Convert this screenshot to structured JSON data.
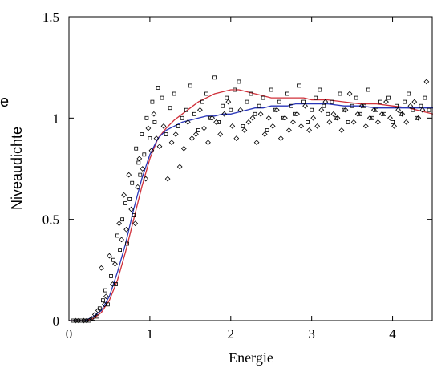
{
  "chart_data": {
    "type": "scatter",
    "title": "",
    "xlabel": "Energie",
    "ylabel": "Niveaudichte",
    "stray_text": "e",
    "xlim": [
      0,
      4.5
    ],
    "ylim": [
      0,
      1.5
    ],
    "x_ticks": [
      0,
      1,
      2,
      3,
      4
    ],
    "x_tick_labels": [
      "0",
      "1",
      "2",
      "3",
      "4"
    ],
    "y_ticks": [
      0,
      0.5,
      1,
      1.5
    ],
    "y_tick_labels": [
      "0",
      "0.5",
      "1",
      "1.5"
    ],
    "grid": false,
    "colors": {
      "red_curve": "#d0303a",
      "blue_curve": "#2a36b8",
      "markers": "#000000"
    },
    "series": [
      {
        "marker": "line",
        "color": "#d0303a",
        "x": [
          0,
          0.2,
          0.3,
          0.4,
          0.5,
          0.6,
          0.7,
          0.8,
          0.9,
          1.0,
          1.1,
          1.2,
          1.3,
          1.4,
          1.5,
          1.6,
          1.7,
          1.8,
          1.9,
          2.0,
          2.1,
          2.2,
          2.3,
          2.4,
          2.5,
          2.6,
          2.7,
          2.8,
          2.9,
          3.0,
          3.2,
          3.4,
          3.6,
          3.8,
          4.0,
          4.2,
          4.4,
          4.5
        ],
        "y": [
          0,
          0,
          0.01,
          0.04,
          0.1,
          0.2,
          0.34,
          0.5,
          0.66,
          0.8,
          0.9,
          0.95,
          0.99,
          1.02,
          1.05,
          1.08,
          1.1,
          1.12,
          1.13,
          1.14,
          1.14,
          1.13,
          1.12,
          1.11,
          1.1,
          1.1,
          1.1,
          1.1,
          1.1,
          1.09,
          1.09,
          1.08,
          1.07,
          1.07,
          1.06,
          1.05,
          1.03,
          1.02
        ]
      },
      {
        "marker": "line",
        "color": "#2a36b8",
        "x": [
          0,
          0.2,
          0.3,
          0.4,
          0.5,
          0.6,
          0.7,
          0.8,
          0.9,
          1.0,
          1.1,
          1.2,
          1.3,
          1.4,
          1.5,
          1.6,
          1.7,
          1.8,
          1.9,
          2.0,
          2.1,
          2.2,
          2.3,
          2.4,
          2.5,
          2.6,
          2.7,
          2.8,
          2.9,
          3.0,
          3.2,
          3.4,
          3.6,
          3.8,
          4.0,
          4.2,
          4.4,
          4.5
        ],
        "y": [
          0,
          0,
          0.02,
          0.05,
          0.12,
          0.24,
          0.38,
          0.55,
          0.7,
          0.82,
          0.9,
          0.94,
          0.96,
          0.98,
          0.99,
          1.0,
          1.01,
          1.01,
          1.02,
          1.02,
          1.03,
          1.04,
          1.05,
          1.05,
          1.06,
          1.06,
          1.06,
          1.07,
          1.07,
          1.07,
          1.07,
          1.06,
          1.06,
          1.05,
          1.05,
          1.05,
          1.05,
          1.05
        ]
      },
      {
        "marker": "square",
        "x": [
          0.05,
          0.1,
          0.15,
          0.2,
          0.25,
          0.3,
          0.35,
          0.38,
          0.42,
          0.45,
          0.48,
          0.52,
          0.55,
          0.58,
          0.6,
          0.63,
          0.66,
          0.7,
          0.72,
          0.75,
          0.78,
          0.8,
          0.83,
          0.86,
          0.88,
          0.9,
          0.93,
          0.96,
          1.0,
          1.03,
          1.06,
          1.1,
          1.15,
          1.2,
          1.25,
          1.3,
          1.35,
          1.4,
          1.45,
          1.5,
          1.55,
          1.6,
          1.65,
          1.7,
          1.75,
          1.8,
          1.85,
          1.9,
          1.95,
          2.0,
          2.05,
          2.1,
          2.15,
          2.2,
          2.25,
          2.3,
          2.35,
          2.4,
          2.45,
          2.5,
          2.55,
          2.6,
          2.65,
          2.7,
          2.75,
          2.8,
          2.85,
          2.9,
          2.95,
          3.0,
          3.05,
          3.1,
          3.15,
          3.2,
          3.25,
          3.3,
          3.35,
          3.4,
          3.45,
          3.5,
          3.55,
          3.6,
          3.65,
          3.7,
          3.75,
          3.8,
          3.85,
          3.9,
          3.95,
          4.0,
          4.05,
          4.1,
          4.15,
          4.2,
          4.25,
          4.3,
          4.35,
          4.4,
          4.45
        ],
        "y": [
          0,
          0,
          0,
          0,
          0,
          0.01,
          0.02,
          0.06,
          0.1,
          0.15,
          0.08,
          0.22,
          0.3,
          0.18,
          0.42,
          0.35,
          0.5,
          0.58,
          0.38,
          0.6,
          0.68,
          0.52,
          0.85,
          0.78,
          0.72,
          0.92,
          0.82,
          1.0,
          0.9,
          1.08,
          0.98,
          1.15,
          1.1,
          0.92,
          1.05,
          1.12,
          0.96,
          1.0,
          1.04,
          1.16,
          1.02,
          0.94,
          1.08,
          1.12,
          1.0,
          1.2,
          0.98,
          1.06,
          1.1,
          1.04,
          1.14,
          1.18,
          0.96,
          1.08,
          1.12,
          1.02,
          1.06,
          1.1,
          0.94,
          1.14,
          1.04,
          1.08,
          1.0,
          1.12,
          1.06,
          1.02,
          1.16,
          1.08,
          0.98,
          1.04,
          1.1,
          1.14,
          1.06,
          1.02,
          1.08,
          1.0,
          1.12,
          1.04,
          0.98,
          1.06,
          1.1,
          1.02,
          1.06,
          1.14,
          1.0,
          1.04,
          1.08,
          1.02,
          1.1,
          0.98,
          1.06,
          1.02,
          1.08,
          1.12,
          1.04,
          1.0,
          1.06,
          1.1,
          1.04
        ]
      },
      {
        "marker": "diamond",
        "x": [
          0.08,
          0.12,
          0.18,
          0.22,
          0.28,
          0.32,
          0.36,
          0.4,
          0.44,
          0.46,
          0.5,
          0.54,
          0.57,
          0.62,
          0.65,
          0.68,
          0.71,
          0.74,
          0.77,
          0.82,
          0.85,
          0.87,
          0.91,
          0.95,
          0.98,
          1.02,
          1.05,
          1.08,
          1.12,
          1.17,
          1.22,
          1.27,
          1.32,
          1.37,
          1.42,
          1.47,
          1.52,
          1.57,
          1.62,
          1.67,
          1.72,
          1.77,
          1.82,
          1.87,
          1.92,
          1.97,
          2.02,
          2.07,
          2.12,
          2.17,
          2.22,
          2.27,
          2.32,
          2.37,
          2.42,
          2.47,
          2.52,
          2.57,
          2.62,
          2.67,
          2.72,
          2.77,
          2.82,
          2.87,
          2.92,
          2.97,
          3.02,
          3.07,
          3.12,
          3.17,
          3.22,
          3.27,
          3.32,
          3.37,
          3.42,
          3.47,
          3.52,
          3.57,
          3.62,
          3.67,
          3.72,
          3.77,
          3.82,
          3.87,
          3.92,
          3.97,
          4.02,
          4.07,
          4.12,
          4.17,
          4.22,
          4.27,
          4.32,
          4.37,
          4.42
        ],
        "y": [
          0,
          0,
          0,
          0,
          0.01,
          0.03,
          0.05,
          0.26,
          0.08,
          0.12,
          0.32,
          0.18,
          0.28,
          0.48,
          0.4,
          0.62,
          0.45,
          0.72,
          0.55,
          0.48,
          0.66,
          0.8,
          0.75,
          0.7,
          0.95,
          0.84,
          1.02,
          0.9,
          0.86,
          0.96,
          0.7,
          0.88,
          0.92,
          0.76,
          0.85,
          0.98,
          0.9,
          0.92,
          1.04,
          0.95,
          0.88,
          1.0,
          0.98,
          0.92,
          1.02,
          1.08,
          0.96,
          0.9,
          1.04,
          0.94,
          0.98,
          1.0,
          0.88,
          1.02,
          0.92,
          1.0,
          0.96,
          1.04,
          0.9,
          1.0,
          0.94,
          0.98,
          1.02,
          0.96,
          1.06,
          0.94,
          1.0,
          0.96,
          1.04,
          1.08,
          0.98,
          1.02,
          1.0,
          0.94,
          1.04,
          1.12,
          0.98,
          1.02,
          1.06,
          0.96,
          1.0,
          1.04,
          0.98,
          1.02,
          1.08,
          1.0,
          0.96,
          1.04,
          1.02,
          0.98,
          1.06,
          1.08,
          1.0,
          1.04,
          1.18
        ]
      }
    ]
  }
}
